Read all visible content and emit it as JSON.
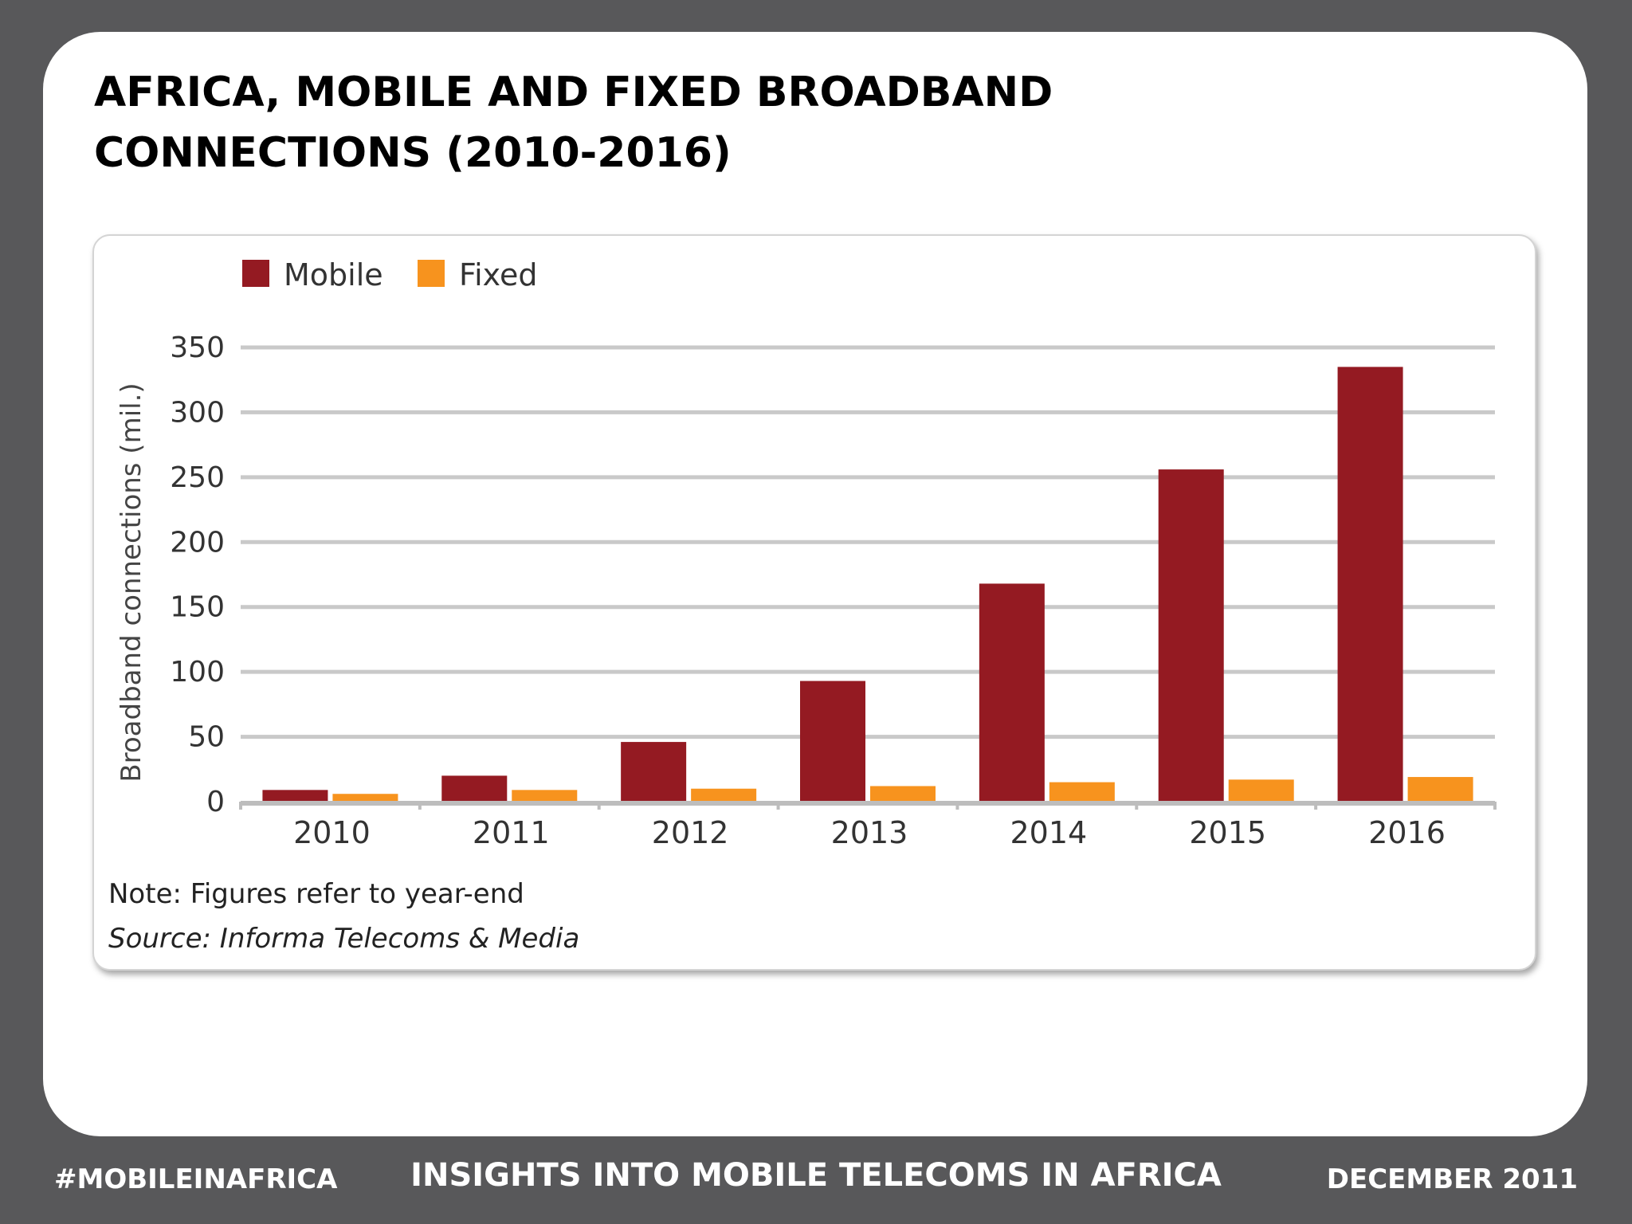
{
  "title_lines": [
    "AFRICA, MOBILE AND FIXED BROADBAND",
    "CONNECTIONS (2010-2016)"
  ],
  "colors": {
    "mobile": "#941a22",
    "fixed": "#f7931e",
    "grid": "#c9c9c9"
  },
  "chart_data": {
    "type": "bar",
    "categories": [
      "2010",
      "2011",
      "2012",
      "2013",
      "2014",
      "2015",
      "2016"
    ],
    "series": [
      {
        "name": "Mobile",
        "values": [
          9,
          20,
          46,
          93,
          168,
          256,
          335
        ]
      },
      {
        "name": "Fixed",
        "values": [
          6,
          9,
          10,
          12,
          15,
          17,
          19
        ]
      }
    ],
    "ylabel": "Broadband connections (mil.)",
    "xlabel": "",
    "ylim": [
      0,
      350
    ],
    "yticks": [
      "0",
      "50",
      "100",
      "150",
      "200",
      "250",
      "300",
      "350"
    ],
    "grid": true,
    "legend": "top-left"
  },
  "notes": {
    "note": "Note: Figures refer to year-end",
    "source": "Source: Informa Telecoms & Media"
  },
  "footer": {
    "left": "#MOBILEINAFRICA",
    "center": "INSIGHTS INTO MOBILE TELECOMS IN AFRICA",
    "right": "DECEMBER 2011"
  }
}
